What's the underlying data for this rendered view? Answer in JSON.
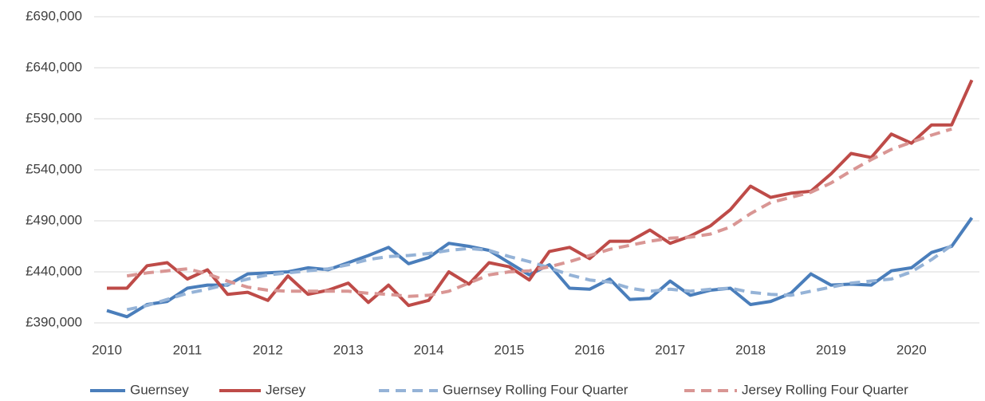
{
  "chart_data": {
    "type": "line",
    "categories": [
      "2010",
      null,
      null,
      null,
      "2011",
      null,
      null,
      null,
      "2012",
      null,
      null,
      null,
      "2013",
      null,
      null,
      null,
      "2014",
      null,
      null,
      null,
      "2015",
      null,
      null,
      null,
      "2016",
      null,
      null,
      null,
      "2017",
      null,
      null,
      null,
      "2018",
      null,
      null,
      null,
      "2019",
      null,
      null,
      null,
      "2020",
      null,
      null,
      null
    ],
    "series": [
      {
        "name": "Guernsey",
        "color": "#4a7ebb",
        "style": "solid",
        "values": [
          402000,
          396000,
          408000,
          411000,
          424000,
          427000,
          427000,
          438000,
          439000,
          440000,
          444000,
          442000,
          449000,
          456000,
          464000,
          448000,
          454000,
          468000,
          465000,
          461000,
          449000,
          437000,
          447000,
          424000,
          423000,
          433000,
          413000,
          414000,
          431000,
          417000,
          422000,
          424000,
          408000,
          411000,
          419000,
          438000,
          427000,
          428000,
          427000,
          441000,
          444000,
          459000,
          465000,
          493000
        ]
      },
      {
        "name": "Jersey",
        "color": "#be4b48",
        "style": "solid",
        "values": [
          424000,
          424000,
          446000,
          449000,
          433000,
          442000,
          418000,
          420000,
          412000,
          436000,
          418000,
          422000,
          429000,
          410000,
          427000,
          407000,
          412000,
          440000,
          428000,
          449000,
          445000,
          432000,
          460000,
          464000,
          453000,
          470000,
          470000,
          481000,
          468000,
          475000,
          485000,
          501000,
          524000,
          513000,
          517000,
          519000,
          536000,
          556000,
          552000,
          575000,
          566000,
          584000,
          584000,
          628000
        ]
      },
      {
        "name": "Guernsey Rolling Four Quarter",
        "color": "#95b3d7",
        "style": "dashed",
        "values": [
          null,
          403000,
          407000,
          413000,
          419000,
          423000,
          428000,
          433000,
          437000,
          439000,
          441000,
          443000,
          447000,
          452000,
          455000,
          456000,
          458000,
          461000,
          463000,
          461000,
          455000,
          450000,
          444000,
          437000,
          432000,
          430000,
          424000,
          421000,
          423000,
          421000,
          423000,
          424000,
          420000,
          418000,
          417000,
          421000,
          425000,
          429000,
          431000,
          433000,
          440000,
          452000,
          466000,
          null
        ]
      },
      {
        "name": "Jersey Rolling Four Quarter",
        "color": "#d99694",
        "style": "dashed",
        "values": [
          null,
          436000,
          439000,
          441000,
          443000,
          438000,
          431000,
          425000,
          422000,
          421000,
          421000,
          421000,
          421000,
          419000,
          418000,
          416000,
          417000,
          421000,
          429000,
          437000,
          440000,
          441000,
          445000,
          450000,
          456000,
          462000,
          466000,
          470000,
          473000,
          474000,
          477000,
          484000,
          497000,
          508000,
          513000,
          518000,
          527000,
          539000,
          550000,
          560000,
          567000,
          574000,
          580000,
          null
        ]
      }
    ],
    "ylim": [
      390000,
      690000
    ],
    "yticks": [
      {
        "value": 390000,
        "label": "£390,000"
      },
      {
        "value": 440000,
        "label": "£440,000"
      },
      {
        "value": 490000,
        "label": "£490,000"
      },
      {
        "value": 540000,
        "label": "£540,000"
      },
      {
        "value": 590000,
        "label": "£590,000"
      },
      {
        "value": 640000,
        "label": "£640,000"
      },
      {
        "value": 690000,
        "label": "£690,000"
      }
    ],
    "grid": true,
    "legend": "bottom"
  }
}
